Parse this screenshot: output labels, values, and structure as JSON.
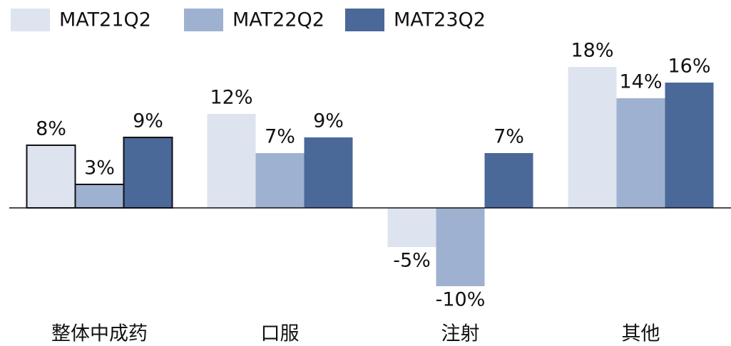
{
  "chart_data": {
    "type": "bar",
    "categories": [
      "整体中成药",
      "口服",
      "注射",
      "其他"
    ],
    "series": [
      {
        "name": "MAT21Q2",
        "color": "#dde4ef",
        "values": [
          8,
          12,
          -5,
          18
        ],
        "value_labels": [
          "8%",
          "12%",
          "-5%",
          "18%"
        ]
      },
      {
        "name": "MAT22Q2",
        "color": "#9fb1d0",
        "values": [
          3,
          7,
          -10,
          14
        ],
        "value_labels": [
          "3%",
          "7%",
          "-10%",
          "14%"
        ]
      },
      {
        "name": "MAT23Q2",
        "color": "#4a6898",
        "values": [
          9,
          9,
          7,
          16
        ],
        "value_labels": [
          "9%",
          "9%",
          "7%",
          "16%"
        ]
      }
    ],
    "ylim": [
      -12,
      20
    ],
    "legend": "top-left",
    "outline_categories": [
      0
    ]
  }
}
